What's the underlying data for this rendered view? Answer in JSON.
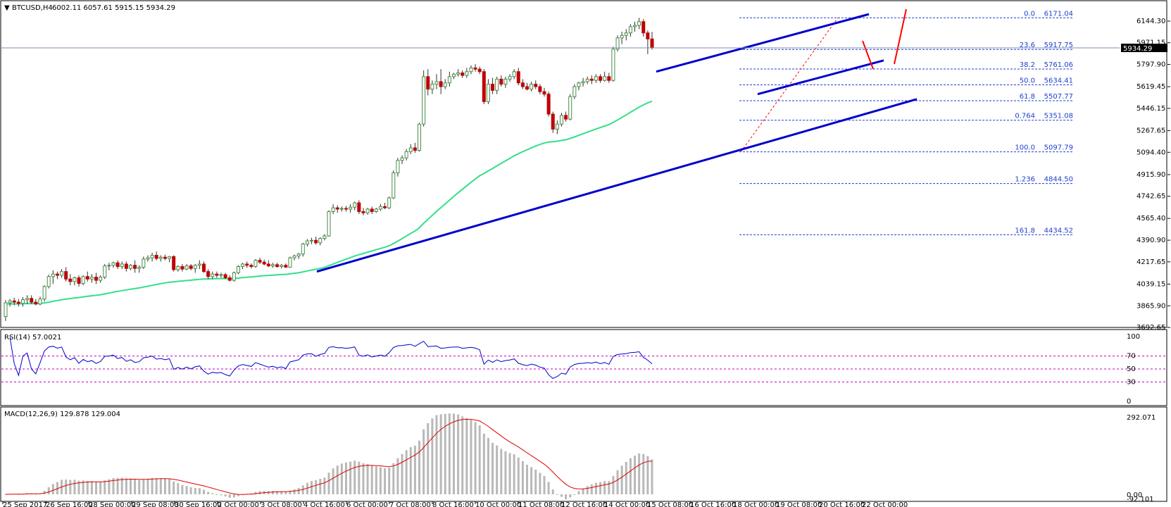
{
  "header": {
    "symbol_label": "BTCUSD,H4",
    "ohlc": "6002.11 6057.61 5915.15 5934.29"
  },
  "price_scale": {
    "labels": [
      "6144.30",
      "5971.15",
      "5797.90",
      "5619.45",
      "5446.15",
      "5267.65",
      "5094.40",
      "4915.90",
      "4742.65",
      "4565.40",
      "4390.90",
      "4217.65",
      "4039.15",
      "3865.90",
      "3692.65"
    ],
    "current_price_label": "5934.29"
  },
  "fibonacci": [
    {
      "ratio": "0.0",
      "price": "6171.04"
    },
    {
      "ratio": "23.6",
      "price": "5917.75"
    },
    {
      "ratio": "38.2",
      "price": "5761.06"
    },
    {
      "ratio": "50.0",
      "price": "5634.41"
    },
    {
      "ratio": "61.8",
      "price": "5507.77"
    },
    {
      "ratio": "0.764",
      "price": "5351.08"
    },
    {
      "ratio": "100.0",
      "price": "5097.79"
    },
    {
      "ratio": "1.236",
      "price": "4844.50"
    },
    {
      "ratio": "161.8",
      "price": "4434.52"
    }
  ],
  "rsi_panel": {
    "label": "RSI(14) 57.0021",
    "scale_labels": [
      "100",
      "70",
      "50",
      "30",
      "0"
    ]
  },
  "macd_panel": {
    "label": "MACD(12,26,9) 129.878 129.004",
    "scale_labels": [
      "292.071",
      "0.00",
      "-92.101"
    ]
  },
  "time_axis": {
    "labels": [
      "25 Sep 2017",
      "26 Sep 16:00",
      "28 Sep 00:00",
      "29 Sep 08:00",
      "30 Sep 16:00",
      "2 Oct 00:00",
      "3 Oct 08:00",
      "4 Oct 16:00",
      "6 Oct 00:00",
      "7 Oct 08:00",
      "8 Oct 16:00",
      "10 Oct 00:00",
      "11 Oct 08:00",
      "12 Oct 16:00",
      "14 Oct 00:00",
      "15 Oct 08:00",
      "16 Oct 16:00",
      "18 Oct 00:00",
      "19 Oct 08:00",
      "20 Oct 16:00",
      "22 Oct 00:00"
    ]
  },
  "colors": {
    "bull_candle": "#4a8a4a",
    "bear_candle": "#c00000",
    "trendline": "#0000cc",
    "moving_average": "#33e08a",
    "fib_line": "#1f3fcf",
    "rsi_line": "#0000cc",
    "macd_signal": "#e00000",
    "macd_hist": "#b8b8b8",
    "level_line": "#c000c0",
    "arrow": "#ff0000"
  },
  "chart_data": {
    "type": "candlestick",
    "symbol": "BTCUSD",
    "timeframe": "H4",
    "ylim": [
      3692.65,
      6144.3
    ],
    "current_price": 5934.29,
    "candles": [
      {
        "o": 3780,
        "h": 3912,
        "l": 3745,
        "c": 3890
      },
      {
        "o": 3890,
        "h": 3920,
        "l": 3860,
        "c": 3905
      },
      {
        "o": 3905,
        "h": 3930,
        "l": 3870,
        "c": 3895
      },
      {
        "o": 3895,
        "h": 3920,
        "l": 3860,
        "c": 3885
      },
      {
        "o": 3885,
        "h": 3935,
        "l": 3860,
        "c": 3915
      },
      {
        "o": 3915,
        "h": 3950,
        "l": 3880,
        "c": 3925
      },
      {
        "o": 3925,
        "h": 3950,
        "l": 3880,
        "c": 3895
      },
      {
        "o": 3895,
        "h": 3920,
        "l": 3870,
        "c": 3880
      },
      {
        "o": 3880,
        "h": 3940,
        "l": 3870,
        "c": 3920
      },
      {
        "o": 3920,
        "h": 4030,
        "l": 3900,
        "c": 4020
      },
      {
        "o": 4020,
        "h": 4115,
        "l": 4005,
        "c": 4100
      },
      {
        "o": 4100,
        "h": 4150,
        "l": 4040,
        "c": 4120
      },
      {
        "o": 4120,
        "h": 4140,
        "l": 4080,
        "c": 4110
      },
      {
        "o": 4110,
        "h": 4160,
        "l": 4090,
        "c": 4140
      },
      {
        "o": 4140,
        "h": 4175,
        "l": 4060,
        "c": 4080
      },
      {
        "o": 4080,
        "h": 4120,
        "l": 4030,
        "c": 4060
      },
      {
        "o": 4060,
        "h": 4100,
        "l": 4030,
        "c": 4090
      },
      {
        "o": 4090,
        "h": 4110,
        "l": 4020,
        "c": 4045
      },
      {
        "o": 4045,
        "h": 4110,
        "l": 4030,
        "c": 4100
      },
      {
        "o": 4100,
        "h": 4140,
        "l": 4060,
        "c": 4080
      },
      {
        "o": 4080,
        "h": 4120,
        "l": 4050,
        "c": 4095
      },
      {
        "o": 4095,
        "h": 4130,
        "l": 4040,
        "c": 4070
      },
      {
        "o": 4070,
        "h": 4110,
        "l": 4050,
        "c": 4095
      },
      {
        "o": 4095,
        "h": 4200,
        "l": 4080,
        "c": 4185
      },
      {
        "o": 4185,
        "h": 4210,
        "l": 4150,
        "c": 4190
      },
      {
        "o": 4190,
        "h": 4220,
        "l": 4170,
        "c": 4210
      },
      {
        "o": 4210,
        "h": 4230,
        "l": 4160,
        "c": 4180
      },
      {
        "o": 4180,
        "h": 4220,
        "l": 4160,
        "c": 4200
      },
      {
        "o": 4200,
        "h": 4220,
        "l": 4140,
        "c": 4165
      },
      {
        "o": 4165,
        "h": 4200,
        "l": 4150,
        "c": 4190
      },
      {
        "o": 4190,
        "h": 4230,
        "l": 4130,
        "c": 4165
      },
      {
        "o": 4165,
        "h": 4190,
        "l": 4130,
        "c": 4175
      },
      {
        "o": 4175,
        "h": 4260,
        "l": 4160,
        "c": 4240
      },
      {
        "o": 4240,
        "h": 4270,
        "l": 4220,
        "c": 4250
      },
      {
        "o": 4250,
        "h": 4290,
        "l": 4220,
        "c": 4270
      },
      {
        "o": 4270,
        "h": 4300,
        "l": 4230,
        "c": 4245
      },
      {
        "o": 4245,
        "h": 4270,
        "l": 4220,
        "c": 4255
      },
      {
        "o": 4255,
        "h": 4275,
        "l": 4230,
        "c": 4245
      },
      {
        "o": 4245,
        "h": 4265,
        "l": 4215,
        "c": 4260
      },
      {
        "o": 4260,
        "h": 4270,
        "l": 4140,
        "c": 4155
      },
      {
        "o": 4155,
        "h": 4190,
        "l": 4140,
        "c": 4180
      },
      {
        "o": 4180,
        "h": 4200,
        "l": 4140,
        "c": 4160
      },
      {
        "o": 4160,
        "h": 4200,
        "l": 4150,
        "c": 4185
      },
      {
        "o": 4185,
        "h": 4200,
        "l": 4150,
        "c": 4165
      },
      {
        "o": 4165,
        "h": 4200,
        "l": 4130,
        "c": 4190
      },
      {
        "o": 4190,
        "h": 4230,
        "l": 4160,
        "c": 4200
      },
      {
        "o": 4200,
        "h": 4220,
        "l": 4130,
        "c": 4140
      },
      {
        "o": 4140,
        "h": 4160,
        "l": 4080,
        "c": 4100
      },
      {
        "o": 4100,
        "h": 4140,
        "l": 4080,
        "c": 4120
      },
      {
        "o": 4120,
        "h": 4140,
        "l": 4090,
        "c": 4110
      },
      {
        "o": 4110,
        "h": 4130,
        "l": 4090,
        "c": 4115
      },
      {
        "o": 4115,
        "h": 4130,
        "l": 4080,
        "c": 4090
      },
      {
        "o": 4090,
        "h": 4110,
        "l": 4060,
        "c": 4070
      },
      {
        "o": 4070,
        "h": 4140,
        "l": 4060,
        "c": 4130
      },
      {
        "o": 4130,
        "h": 4190,
        "l": 4120,
        "c": 4180
      },
      {
        "o": 4180,
        "h": 4210,
        "l": 4160,
        "c": 4200
      },
      {
        "o": 4200,
        "h": 4220,
        "l": 4170,
        "c": 4190
      },
      {
        "o": 4190,
        "h": 4205,
        "l": 4165,
        "c": 4180
      },
      {
        "o": 4180,
        "h": 4240,
        "l": 4170,
        "c": 4230
      },
      {
        "o": 4230,
        "h": 4250,
        "l": 4200,
        "c": 4215
      },
      {
        "o": 4215,
        "h": 4235,
        "l": 4190,
        "c": 4200
      },
      {
        "o": 4200,
        "h": 4230,
        "l": 4175,
        "c": 4185
      },
      {
        "o": 4185,
        "h": 4210,
        "l": 4170,
        "c": 4195
      },
      {
        "o": 4195,
        "h": 4210,
        "l": 4170,
        "c": 4180
      },
      {
        "o": 4180,
        "h": 4200,
        "l": 4165,
        "c": 4190
      },
      {
        "o": 4190,
        "h": 4205,
        "l": 4170,
        "c": 4175
      },
      {
        "o": 4175,
        "h": 4260,
        "l": 4170,
        "c": 4250
      },
      {
        "o": 4250,
        "h": 4275,
        "l": 4230,
        "c": 4265
      },
      {
        "o": 4265,
        "h": 4290,
        "l": 4240,
        "c": 4280
      },
      {
        "o": 4280,
        "h": 4370,
        "l": 4260,
        "c": 4360
      },
      {
        "o": 4360,
        "h": 4400,
        "l": 4340,
        "c": 4385
      },
      {
        "o": 4385,
        "h": 4410,
        "l": 4360,
        "c": 4390
      },
      {
        "o": 4390,
        "h": 4420,
        "l": 4355,
        "c": 4370
      },
      {
        "o": 4370,
        "h": 4415,
        "l": 4350,
        "c": 4405
      },
      {
        "o": 4405,
        "h": 4440,
        "l": 4390,
        "c": 4425
      },
      {
        "o": 4425,
        "h": 4630,
        "l": 4420,
        "c": 4620
      },
      {
        "o": 4620,
        "h": 4680,
        "l": 4600,
        "c": 4650
      },
      {
        "o": 4650,
        "h": 4670,
        "l": 4610,
        "c": 4640
      },
      {
        "o": 4640,
        "h": 4660,
        "l": 4620,
        "c": 4645
      },
      {
        "o": 4645,
        "h": 4665,
        "l": 4620,
        "c": 4640
      },
      {
        "o": 4640,
        "h": 4680,
        "l": 4610,
        "c": 4655
      },
      {
        "o": 4655,
        "h": 4700,
        "l": 4630,
        "c": 4690
      },
      {
        "o": 4690,
        "h": 4710,
        "l": 4600,
        "c": 4620
      },
      {
        "o": 4620,
        "h": 4650,
        "l": 4590,
        "c": 4610
      },
      {
        "o": 4610,
        "h": 4650,
        "l": 4595,
        "c": 4640
      },
      {
        "o": 4640,
        "h": 4660,
        "l": 4600,
        "c": 4620
      },
      {
        "o": 4620,
        "h": 4650,
        "l": 4610,
        "c": 4640
      },
      {
        "o": 4640,
        "h": 4680,
        "l": 4625,
        "c": 4660
      },
      {
        "o": 4660,
        "h": 4690,
        "l": 4640,
        "c": 4650
      },
      {
        "o": 4650,
        "h": 4740,
        "l": 4640,
        "c": 4730
      },
      {
        "o": 4730,
        "h": 4950,
        "l": 4720,
        "c": 4930
      },
      {
        "o": 4930,
        "h": 5050,
        "l": 4900,
        "c": 5030
      },
      {
        "o": 5030,
        "h": 5070,
        "l": 5000,
        "c": 5050
      },
      {
        "o": 5050,
        "h": 5120,
        "l": 5030,
        "c": 5100
      },
      {
        "o": 5100,
        "h": 5160,
        "l": 5080,
        "c": 5130
      },
      {
        "o": 5130,
        "h": 5170,
        "l": 5090,
        "c": 5110
      },
      {
        "o": 5110,
        "h": 5330,
        "l": 5100,
        "c": 5320
      },
      {
        "o": 5320,
        "h": 5750,
        "l": 5300,
        "c": 5700
      },
      {
        "o": 5700,
        "h": 5760,
        "l": 5550,
        "c": 5600
      },
      {
        "o": 5600,
        "h": 5670,
        "l": 5560,
        "c": 5640
      },
      {
        "o": 5640,
        "h": 5720,
        "l": 5600,
        "c": 5660
      },
      {
        "o": 5660,
        "h": 5760,
        "l": 5560,
        "c": 5620
      },
      {
        "o": 5620,
        "h": 5680,
        "l": 5600,
        "c": 5650
      },
      {
        "o": 5650,
        "h": 5740,
        "l": 5620,
        "c": 5700
      },
      {
        "o": 5700,
        "h": 5730,
        "l": 5680,
        "c": 5720
      },
      {
        "o": 5720,
        "h": 5760,
        "l": 5700,
        "c": 5730
      },
      {
        "o": 5730,
        "h": 5750,
        "l": 5690,
        "c": 5710
      },
      {
        "o": 5710,
        "h": 5770,
        "l": 5690,
        "c": 5740
      },
      {
        "o": 5740,
        "h": 5790,
        "l": 5720,
        "c": 5770
      },
      {
        "o": 5770,
        "h": 5800,
        "l": 5740,
        "c": 5760
      },
      {
        "o": 5760,
        "h": 5780,
        "l": 5720,
        "c": 5740
      },
      {
        "o": 5740,
        "h": 5760,
        "l": 5480,
        "c": 5500
      },
      {
        "o": 5500,
        "h": 5680,
        "l": 5480,
        "c": 5640
      },
      {
        "o": 5640,
        "h": 5690,
        "l": 5560,
        "c": 5590
      },
      {
        "o": 5590,
        "h": 5700,
        "l": 5560,
        "c": 5680
      },
      {
        "o": 5680,
        "h": 5710,
        "l": 5620,
        "c": 5640
      },
      {
        "o": 5640,
        "h": 5700,
        "l": 5610,
        "c": 5680
      },
      {
        "o": 5680,
        "h": 5720,
        "l": 5660,
        "c": 5700
      },
      {
        "o": 5700,
        "h": 5760,
        "l": 5680,
        "c": 5740
      },
      {
        "o": 5740,
        "h": 5770,
        "l": 5630,
        "c": 5650
      },
      {
        "o": 5650,
        "h": 5680,
        "l": 5600,
        "c": 5620
      },
      {
        "o": 5620,
        "h": 5650,
        "l": 5590,
        "c": 5600
      },
      {
        "o": 5600,
        "h": 5660,
        "l": 5580,
        "c": 5640
      },
      {
        "o": 5640,
        "h": 5670,
        "l": 5600,
        "c": 5620
      },
      {
        "o": 5620,
        "h": 5640,
        "l": 5560,
        "c": 5580
      },
      {
        "o": 5580,
        "h": 5610,
        "l": 5540,
        "c": 5560
      },
      {
        "o": 5560,
        "h": 5580,
        "l": 5380,
        "c": 5400
      },
      {
        "o": 5400,
        "h": 5420,
        "l": 5250,
        "c": 5280
      },
      {
        "o": 5280,
        "h": 5350,
        "l": 5240,
        "c": 5320
      },
      {
        "o": 5320,
        "h": 5410,
        "l": 5300,
        "c": 5390
      },
      {
        "o": 5390,
        "h": 5420,
        "l": 5340,
        "c": 5360
      },
      {
        "o": 5360,
        "h": 5560,
        "l": 5350,
        "c": 5540
      },
      {
        "o": 5540,
        "h": 5640,
        "l": 5520,
        "c": 5620
      },
      {
        "o": 5620,
        "h": 5660,
        "l": 5590,
        "c": 5650
      },
      {
        "o": 5650,
        "h": 5690,
        "l": 5620,
        "c": 5660
      },
      {
        "o": 5660,
        "h": 5700,
        "l": 5640,
        "c": 5680
      },
      {
        "o": 5680,
        "h": 5710,
        "l": 5640,
        "c": 5670
      },
      {
        "o": 5670,
        "h": 5720,
        "l": 5650,
        "c": 5700
      },
      {
        "o": 5700,
        "h": 5720,
        "l": 5650,
        "c": 5670
      },
      {
        "o": 5670,
        "h": 5740,
        "l": 5660,
        "c": 5700
      },
      {
        "o": 5700,
        "h": 5730,
        "l": 5650,
        "c": 5670
      },
      {
        "o": 5670,
        "h": 5940,
        "l": 5660,
        "c": 5920
      },
      {
        "o": 5920,
        "h": 6030,
        "l": 5900,
        "c": 6010
      },
      {
        "o": 6010,
        "h": 6060,
        "l": 5960,
        "c": 6030
      },
      {
        "o": 6030,
        "h": 6080,
        "l": 5990,
        "c": 6050
      },
      {
        "o": 6050,
        "h": 6120,
        "l": 6020,
        "c": 6100
      },
      {
        "o": 6100,
        "h": 6140,
        "l": 6060,
        "c": 6110
      },
      {
        "o": 6110,
        "h": 6171,
        "l": 6080,
        "c": 6140
      },
      {
        "o": 6140,
        "h": 6160,
        "l": 6020,
        "c": 6050
      },
      {
        "o": 6050,
        "h": 6070,
        "l": 5880,
        "c": 6002
      },
      {
        "o": 6002,
        "h": 6057.61,
        "l": 5915.15,
        "c": 5934.29
      }
    ]
  }
}
